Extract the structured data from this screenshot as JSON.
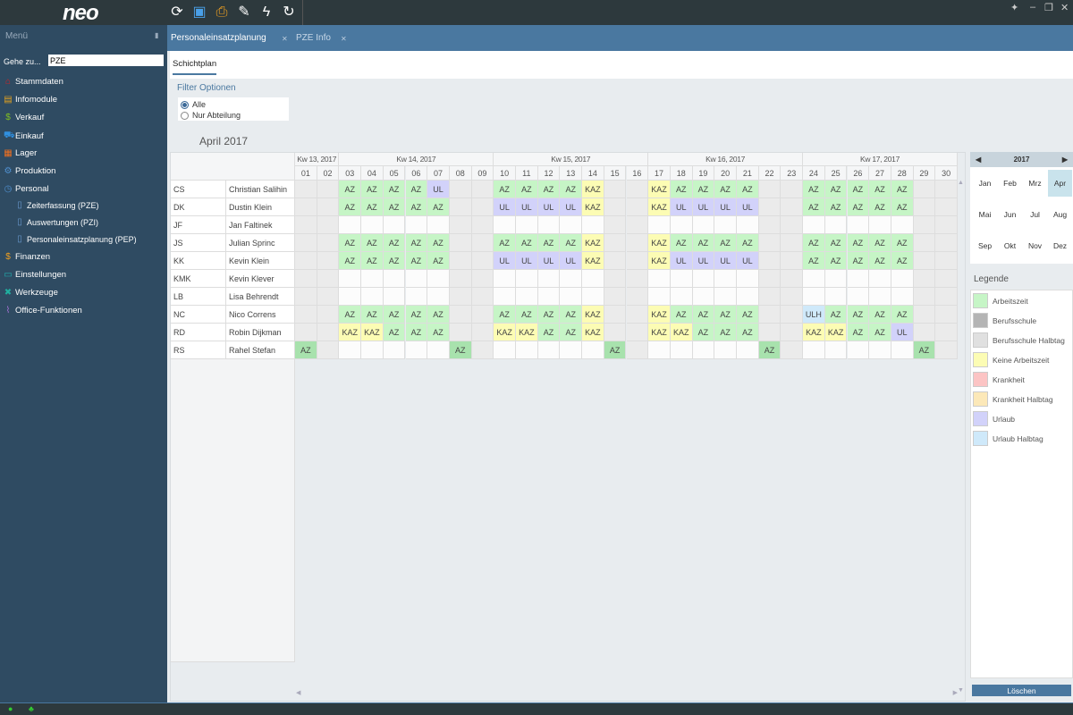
{
  "app": {
    "logo": "neo"
  },
  "toolbar": [
    {
      "icon": "refresh-icon",
      "glyph": "⟳",
      "color": "#ffffff"
    },
    {
      "icon": "save-icon",
      "glyph": "▣",
      "color": "#4aa0e8"
    },
    {
      "icon": "print-icon",
      "glyph": "⎙",
      "color": "#f0a020"
    },
    {
      "icon": "edit-document-icon",
      "glyph": "✎",
      "color": "#ffffff"
    },
    {
      "icon": "lightning-icon",
      "glyph": "ϟ",
      "color": "#ffffff"
    },
    {
      "icon": "sync-icon",
      "glyph": "↻",
      "color": "#ffffff"
    }
  ],
  "sidebar": {
    "title": "Menü",
    "goto_label": "Gehe zu...",
    "goto_value": "PZE",
    "items": [
      {
        "label": "Stammdaten",
        "icon": "house-icon",
        "glyph": "⌂",
        "color": "#e02020"
      },
      {
        "label": "Infomodule",
        "icon": "chart-icon",
        "glyph": "▤",
        "color": "#e0a020"
      },
      {
        "label": "Verkauf",
        "icon": "dollar-icon",
        "glyph": "$",
        "color": "#80c020"
      },
      {
        "label": "Einkauf",
        "icon": "cart-icon",
        "glyph": "⛟",
        "color": "#3090e0"
      },
      {
        "label": "Lager",
        "icon": "boxes-icon",
        "glyph": "▦",
        "color": "#f07020"
      },
      {
        "label": "Produktion",
        "icon": "gears-icon",
        "glyph": "⚙",
        "color": "#5090d0"
      },
      {
        "label": "Personal",
        "icon": "clock-icon",
        "glyph": "◷",
        "color": "#5090d0"
      }
    ],
    "subitems": [
      {
        "label": "Zeiterfassung (PZE)"
      },
      {
        "label": "Auswertungen (PZI)"
      },
      {
        "label": "Personaleinsatzplanung (PEP)"
      }
    ],
    "items2": [
      {
        "label": "Finanzen",
        "icon": "money-icon",
        "glyph": "$",
        "color": "#f0a020"
      },
      {
        "label": "Einstellungen",
        "icon": "monitor-icon",
        "glyph": "▭",
        "color": "#20b0b0"
      },
      {
        "label": "Werkzeuge",
        "icon": "tools-icon",
        "glyph": "✖",
        "color": "#20b0a0"
      },
      {
        "label": "Office-Funktionen",
        "icon": "paperclip-icon",
        "glyph": "⌇",
        "color": "#a070d0"
      }
    ]
  },
  "tabs": [
    {
      "label": "Personaleinsatzplanung",
      "active": true
    },
    {
      "label": "PZE Info",
      "active": false
    }
  ],
  "subtab": "Schichtplan",
  "filter": {
    "title": "Filter Optionen",
    "options": [
      {
        "label": "Alle",
        "checked": true
      },
      {
        "label": "Nur Abteilung",
        "checked": false
      }
    ]
  },
  "month_title": "April 2017",
  "weeks": [
    {
      "label": "Kw 13, 2017",
      "days": 2
    },
    {
      "label": "Kw 14, 2017",
      "days": 7
    },
    {
      "label": "Kw 15, 2017",
      "days": 7
    },
    {
      "label": "Kw 16, 2017",
      "days": 7
    },
    {
      "label": "Kw 17, 2017",
      "days": 7
    }
  ],
  "days": [
    "01",
    "02",
    "03",
    "04",
    "05",
    "06",
    "07",
    "08",
    "09",
    "10",
    "11",
    "12",
    "13",
    "14",
    "15",
    "16",
    "17",
    "18",
    "19",
    "20",
    "21",
    "22",
    "23",
    "24",
    "25",
    "26",
    "27",
    "28",
    "29",
    "30"
  ],
  "weekend_days": [
    "01",
    "02",
    "08",
    "09",
    "15",
    "16",
    "22",
    "23",
    "29",
    "30"
  ],
  "employees": [
    {
      "initials": "CS",
      "name": "Christian Salihin",
      "shifts": [
        "",
        "",
        "AZ",
        "AZ",
        "AZ",
        "AZ",
        "UL",
        "",
        "",
        "AZ",
        "AZ",
        "AZ",
        "AZ",
        "KAZ",
        "",
        "",
        "KAZ",
        "AZ",
        "AZ",
        "AZ",
        "AZ",
        "",
        "",
        "AZ",
        "AZ",
        "AZ",
        "AZ",
        "AZ",
        "",
        ""
      ]
    },
    {
      "initials": "DK",
      "name": "Dustin Klein",
      "shifts": [
        "",
        "",
        "AZ",
        "AZ",
        "AZ",
        "AZ",
        "AZ",
        "",
        "",
        "UL",
        "UL",
        "UL",
        "UL",
        "KAZ",
        "",
        "",
        "KAZ",
        "UL",
        "UL",
        "UL",
        "UL",
        "",
        "",
        "AZ",
        "AZ",
        "AZ",
        "AZ",
        "AZ",
        "",
        ""
      ]
    },
    {
      "initials": "JF",
      "name": "Jan Faltinek",
      "shifts": [
        "",
        "",
        "",
        "",
        "",
        "",
        "",
        "",
        "",
        "",
        "",
        "",
        "",
        "",
        "",
        "",
        "",
        "",
        "",
        "",
        "",
        "",
        "",
        "",
        "",
        "",
        "",
        "",
        "",
        ""
      ]
    },
    {
      "initials": "JS",
      "name": "Julian Sprinc",
      "shifts": [
        "",
        "",
        "AZ",
        "AZ",
        "AZ",
        "AZ",
        "AZ",
        "",
        "",
        "AZ",
        "AZ",
        "AZ",
        "AZ",
        "KAZ",
        "",
        "",
        "KAZ",
        "AZ",
        "AZ",
        "AZ",
        "AZ",
        "",
        "",
        "AZ",
        "AZ",
        "AZ",
        "AZ",
        "AZ",
        "",
        ""
      ]
    },
    {
      "initials": "KK",
      "name": "Kevin Klein",
      "shifts": [
        "",
        "",
        "AZ",
        "AZ",
        "AZ",
        "AZ",
        "AZ",
        "",
        "",
        "UL",
        "UL",
        "UL",
        "UL",
        "KAZ",
        "",
        "",
        "KAZ",
        "UL",
        "UL",
        "UL",
        "UL",
        "",
        "",
        "AZ",
        "AZ",
        "AZ",
        "AZ",
        "AZ",
        "",
        ""
      ]
    },
    {
      "initials": "KMK",
      "name": "Kevin Klever",
      "shifts": [
        "",
        "",
        "",
        "",
        "",
        "",
        "",
        "",
        "",
        "",
        "",
        "",
        "",
        "",
        "",
        "",
        "",
        "",
        "",
        "",
        "",
        "",
        "",
        "",
        "",
        "",
        "",
        "",
        "",
        ""
      ]
    },
    {
      "initials": "LB",
      "name": "Lisa Behrendt",
      "shifts": [
        "",
        "",
        "",
        "",
        "",
        "",
        "",
        "",
        "",
        "",
        "",
        "",
        "",
        "",
        "",
        "",
        "",
        "",
        "",
        "",
        "",
        "",
        "",
        "",
        "",
        "",
        "",
        "",
        "",
        ""
      ]
    },
    {
      "initials": "NC",
      "name": "Nico Correns",
      "shifts": [
        "",
        "",
        "AZ",
        "AZ",
        "AZ",
        "AZ",
        "AZ",
        "",
        "",
        "AZ",
        "AZ",
        "AZ",
        "AZ",
        "KAZ",
        "",
        "",
        "KAZ",
        "AZ",
        "AZ",
        "AZ",
        "AZ",
        "",
        "",
        "ULH",
        "AZ",
        "AZ",
        "AZ",
        "AZ",
        "",
        ""
      ]
    },
    {
      "initials": "RD",
      "name": "Robin Dijkman",
      "shifts": [
        "",
        "",
        "KAZ",
        "KAZ",
        "AZ",
        "AZ",
        "AZ",
        "",
        "",
        "KAZ",
        "KAZ",
        "AZ",
        "AZ",
        "KAZ",
        "",
        "",
        "KAZ",
        "KAZ",
        "AZ",
        "AZ",
        "AZ",
        "",
        "",
        "KAZ",
        "KAZ",
        "AZ",
        "AZ",
        "UL",
        "",
        ""
      ]
    },
    {
      "initials": "RS",
      "name": "Rahel Stefan",
      "shifts": [
        "AZ",
        "",
        "",
        "",
        "",
        "",
        "",
        "AZ",
        "",
        "",
        "",
        "",
        "",
        "",
        "AZ",
        "",
        "",
        "",
        "",
        "",
        "",
        "AZ",
        "",
        "",
        "",
        "",
        "",
        "",
        "AZ",
        ""
      ]
    }
  ],
  "shift_colors": {
    "AZ": "#c6f5c6",
    "AZ_weekend": "#a8e2ad",
    "UL": "#d2d2fa",
    "KAZ": "#fcfcb4",
    "ULH": "#cfe9fa",
    "weekend": "#ebebeb",
    "empty": "#fcfcfc"
  },
  "calendar": {
    "year": "2017",
    "months": [
      "Jan",
      "Feb",
      "Mrz",
      "Apr",
      "Mai",
      "Jun",
      "Jul",
      "Aug",
      "Sep",
      "Okt",
      "Nov",
      "Dez"
    ],
    "selected": "Apr"
  },
  "legend": {
    "title": "Legende",
    "items": [
      {
        "label": "Arbeitszeit",
        "color": "#c6f5c6"
      },
      {
        "label": "Berufsschule",
        "color": "#b4b4b4"
      },
      {
        "label": "Berufsschule Halbtag",
        "color": "#e0e0e0"
      },
      {
        "label": "Keine Arbeitszeit",
        "color": "#fcfcb4"
      },
      {
        "label": "Krankheit",
        "color": "#fcc4c4"
      },
      {
        "label": "Krankheit Halbtag",
        "color": "#fce8b8"
      },
      {
        "label": "Urlaub",
        "color": "#d2d2fa"
      },
      {
        "label": "Urlaub Halbtag",
        "color": "#cfe9fa"
      }
    ],
    "clear_label": "Löschen"
  }
}
